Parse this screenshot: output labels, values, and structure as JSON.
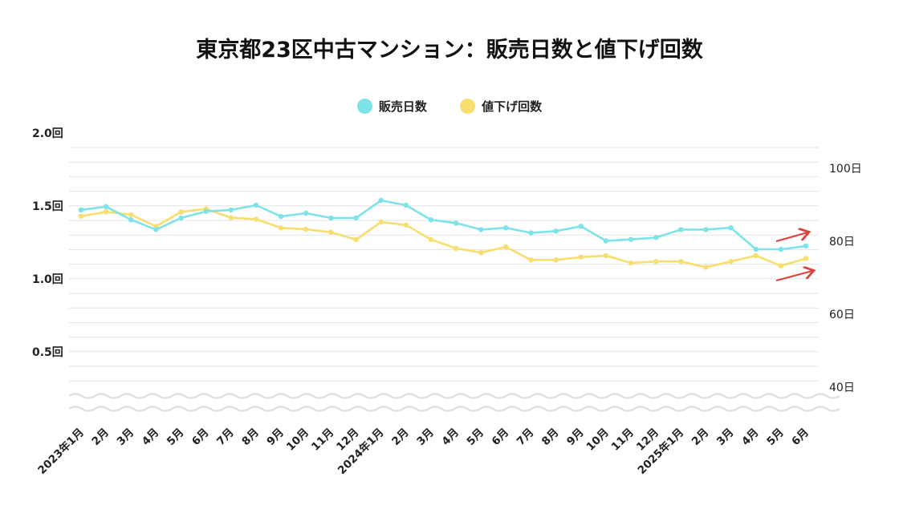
{
  "chart_data": {
    "type": "line",
    "title": "東京都23区中古マンション：販売日数と値下げ回数",
    "categories": [
      "2023年1月",
      "2月",
      "3月",
      "4月",
      "5月",
      "6月",
      "7月",
      "8月",
      "9月",
      "10月",
      "11月",
      "12月",
      "2024年1月",
      "2月",
      "3月",
      "4月",
      "5月",
      "6月",
      "7月",
      "8月",
      "9月",
      "10月",
      "11月",
      "12月",
      "2025年1月",
      "2月",
      "3月",
      "4月",
      "5月",
      "6月"
    ],
    "series": [
      {
        "name": "販売日数",
        "axis": "right",
        "color": "#7ee3e8",
        "values": [
          88.6,
          89.5,
          85.9,
          83.2,
          86.4,
          88.2,
          88.6,
          89.9,
          86.8,
          87.7,
          86.4,
          86.4,
          91.2,
          89.9,
          85.9,
          85.0,
          83.2,
          83.7,
          82.3,
          82.8,
          84.1,
          80.1,
          80.5,
          81.0,
          83.2,
          83.2,
          83.7,
          77.8,
          77.8,
          78.7
        ]
      },
      {
        "name": "値下げ回数",
        "axis": "left",
        "color": "#f8de6e",
        "values": [
          1.43,
          1.46,
          1.44,
          1.36,
          1.46,
          1.48,
          1.42,
          1.41,
          1.35,
          1.34,
          1.32,
          1.27,
          1.39,
          1.37,
          1.27,
          1.21,
          1.18,
          1.22,
          1.13,
          1.13,
          1.15,
          1.16,
          1.11,
          1.12,
          1.12,
          1.08,
          1.12,
          1.16,
          1.09,
          1.14
        ]
      }
    ],
    "y_left": {
      "ticks": [
        "2.0回",
        "1.5回",
        "1.0回",
        "0.5回"
      ],
      "tick_values": [
        2.0,
        1.5,
        1.0,
        0.5
      ],
      "ylim": [
        0.05,
        2.0
      ]
    },
    "y_right": {
      "ticks": [
        "100日",
        "80日",
        "60日",
        "40日"
      ],
      "tick_values": [
        100,
        80,
        60,
        40
      ],
      "ylim": [
        30,
        110
      ]
    },
    "axis_break": true,
    "grid": true,
    "legend_position": "top-center",
    "trend_arrows": {
      "color": "#e0403a",
      "count": 2
    }
  }
}
